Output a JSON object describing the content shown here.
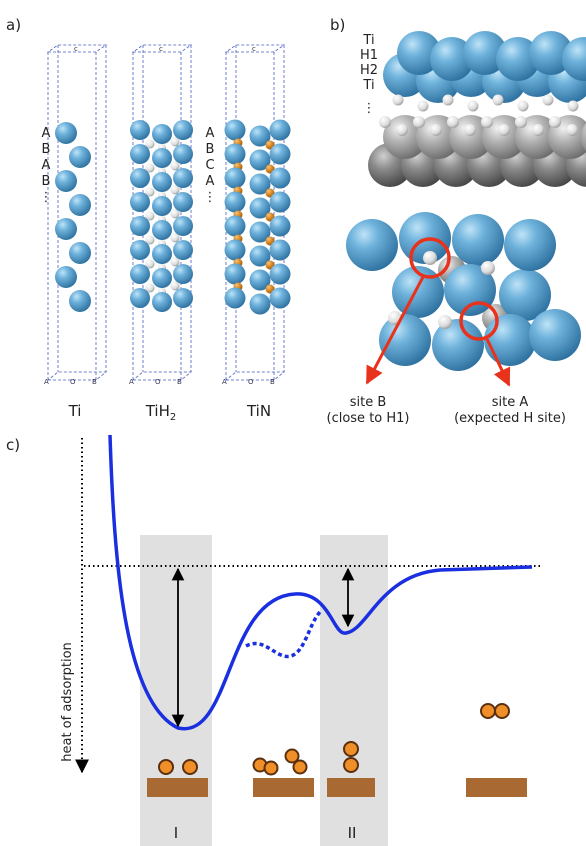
{
  "panel_labels": [
    "a)",
    "b)",
    "c)"
  ],
  "panel_a": {
    "cell_labels": {
      "top": "c",
      "bottom": [
        "A",
        "O",
        "B"
      ]
    },
    "structures": [
      {
        "name": "Ti",
        "stacking": [
          "A",
          "B",
          "A",
          "B",
          "⋮"
        ]
      },
      {
        "name": "TiH",
        "subscript": "2"
      },
      {
        "name": "TiN",
        "stacking": [
          "A",
          "B",
          "C",
          "A",
          "⋮"
        ]
      }
    ]
  },
  "panel_b": {
    "layers": [
      "Ti",
      "H1",
      "H2",
      "Ti",
      "⋮"
    ],
    "sites": [
      {
        "name": "site B",
        "note": "(close to H1)"
      },
      {
        "name": "site A",
        "note": "(expected H site)"
      }
    ]
  },
  "panel_c": {
    "y_axis_label": "heat of adsorption",
    "regions": [
      "I",
      "II"
    ]
  }
}
